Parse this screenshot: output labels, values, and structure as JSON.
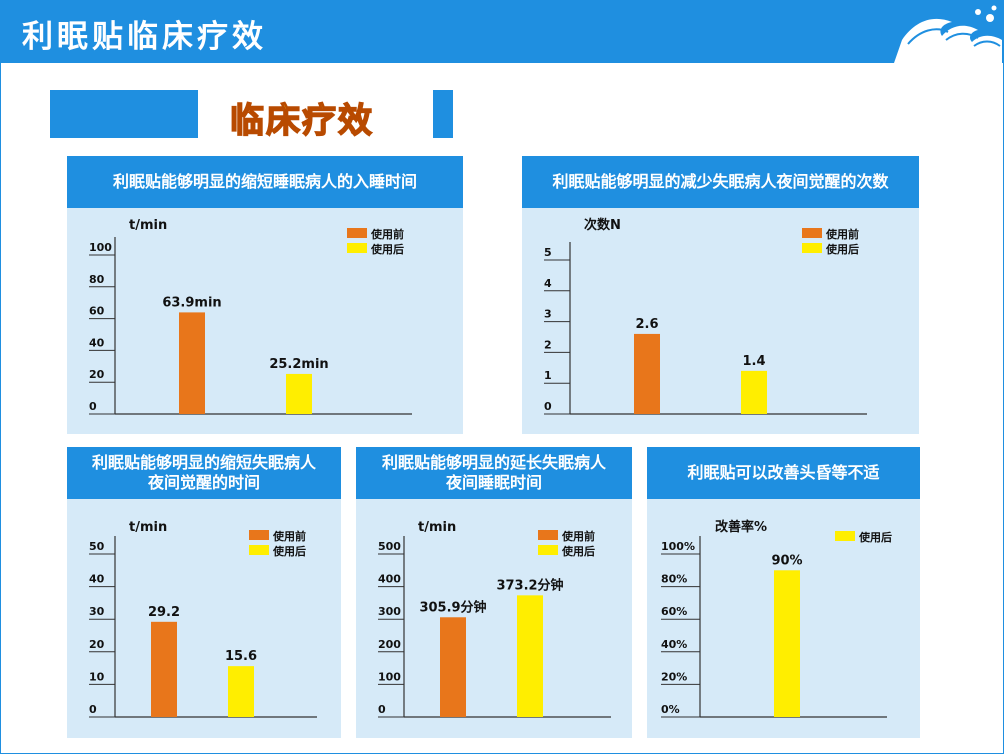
{
  "page": {
    "title": "利眠贴临床疗效",
    "banner": "临床疗效"
  },
  "colors": {
    "header_blue": "#1f8fe0",
    "panel_bg": "#d6eaf8",
    "before": "#e8761b",
    "after": "#ffee00"
  },
  "chart_data": [
    {
      "type": "bar",
      "title": "利眠贴能够明显的缩短睡眠病人的入睡时间",
      "ylabel": "t/min",
      "yticks": [
        "0",
        "20",
        "40",
        "60",
        "80",
        "100"
      ],
      "ylim": [
        0,
        100
      ],
      "categories": [
        "使用前",
        "使用后"
      ],
      "values": [
        63.9,
        25.2
      ],
      "data_labels": [
        "63.9min",
        "25.2min"
      ],
      "legend": [
        "使用前",
        "使用后"
      ]
    },
    {
      "type": "bar",
      "title": "利眠贴能够明显的减少失眠病人夜间觉醒的次数",
      "ylabel": "次数N",
      "yticks": [
        "0",
        "1",
        "2",
        "3",
        "4",
        "5"
      ],
      "ylim": [
        0,
        5
      ],
      "categories": [
        "使用前",
        "使用后"
      ],
      "values": [
        2.6,
        1.4
      ],
      "data_labels": [
        "2.6",
        "1.4"
      ],
      "legend": [
        "使用前",
        "使用后"
      ]
    },
    {
      "type": "bar",
      "title": "利眠贴能够明显的缩短失眠病人夜间觉醒的时间",
      "ylabel": "t/min",
      "yticks": [
        "0",
        "10",
        "20",
        "30",
        "40",
        "50"
      ],
      "ylim": [
        0,
        50
      ],
      "categories": [
        "使用前",
        "使用后"
      ],
      "values": [
        29.2,
        15.6
      ],
      "data_labels": [
        "29.2",
        "15.6"
      ],
      "legend": [
        "使用前",
        "使用后"
      ]
    },
    {
      "type": "bar",
      "title": "利眠贴能够明显的延长失眠病人夜间睡眠时间",
      "ylabel": "t/min",
      "yticks": [
        "0",
        "100",
        "200",
        "300",
        "400",
        "500"
      ],
      "ylim": [
        0,
        500
      ],
      "categories": [
        "使用前",
        "使用后"
      ],
      "values": [
        305.9,
        373.2
      ],
      "data_labels": [
        "305.9分钟",
        "373.2分钟"
      ],
      "legend": [
        "使用前",
        "使用后"
      ]
    },
    {
      "type": "bar",
      "title": "利眠贴可以改善头昏等不适",
      "ylabel": "改善率%",
      "yticks": [
        "0%",
        "20%",
        "40%",
        "60%",
        "80%",
        "100%"
      ],
      "ylim": [
        0,
        100
      ],
      "categories": [
        "使用后"
      ],
      "values": [
        90
      ],
      "data_labels": [
        "90%"
      ],
      "legend": [
        "使用后"
      ]
    }
  ]
}
